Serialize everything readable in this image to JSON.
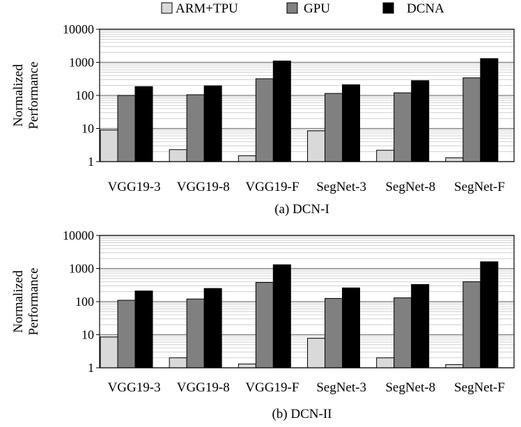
{
  "legend": [
    {
      "name": "ARM+TPU",
      "color": "#d9d9d9"
    },
    {
      "name": "GPU",
      "color": "#808080"
    },
    {
      "name": "DCNA",
      "color": "#000000"
    }
  ],
  "chart_data": [
    {
      "type": "bar",
      "caption": "(a)  DCN-I",
      "ylabel": [
        "Normalized",
        "Performance"
      ],
      "yscale": "log",
      "ylim": [
        1,
        10000
      ],
      "yticks": [
        "1",
        "10",
        "100",
        "1000",
        "10000"
      ],
      "categories": [
        "VGG19-3",
        "VGG19-8",
        "VGG19-F",
        "SegNet-3",
        "SegNet-8",
        "SegNet-F"
      ],
      "series": [
        {
          "name": "ARM+TPU",
          "color": "#d9d9d9",
          "values": [
            9,
            2.3,
            1.5,
            8.5,
            2.2,
            1.3
          ]
        },
        {
          "name": "GPU",
          "color": "#808080",
          "values": [
            100,
            105,
            320,
            115,
            120,
            340
          ]
        },
        {
          "name": "DCNA",
          "color": "#000000",
          "values": [
            185,
            195,
            1100,
            210,
            280,
            1300
          ]
        }
      ]
    },
    {
      "type": "bar",
      "caption": "(b)  DCN-II",
      "ylabel": [
        "Normalized",
        "Performance"
      ],
      "yscale": "log",
      "ylim": [
        1,
        10000
      ],
      "yticks": [
        "1",
        "10",
        "100",
        "1000",
        "10000"
      ],
      "categories": [
        "VGG19-3",
        "VGG19-8",
        "VGG19-F",
        "SegNet-3",
        "SegNet-8",
        "SegNet-F"
      ],
      "series": [
        {
          "name": "ARM+TPU",
          "color": "#d9d9d9",
          "values": [
            8.5,
            2,
            1.3,
            7.8,
            2,
            1.25
          ]
        },
        {
          "name": "GPU",
          "color": "#808080",
          "values": [
            110,
            120,
            380,
            125,
            130,
            400
          ]
        },
        {
          "name": "DCNA",
          "color": "#000000",
          "values": [
            210,
            250,
            1300,
            260,
            330,
            1600
          ]
        }
      ]
    }
  ]
}
